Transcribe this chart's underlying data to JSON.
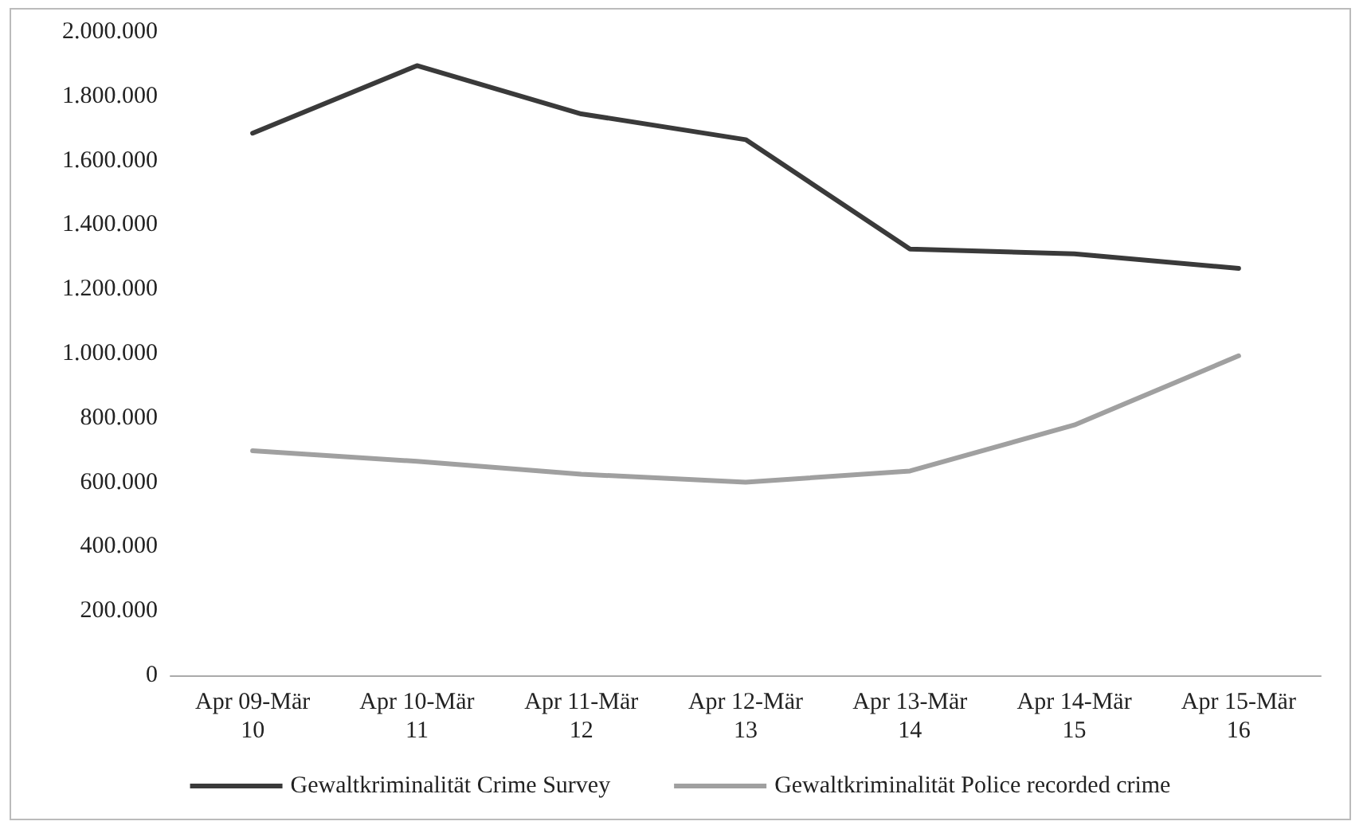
{
  "chart_data": {
    "type": "line",
    "categories": [
      "Apr 09-Mär\n10",
      "Apr 10-Mär\n11",
      "Apr 11-Mär\n12",
      "Apr 12-Mär\n13",
      "Apr 13-Mär\n14",
      "Apr 14-Mär\n15",
      "Apr 15-Mär\n16"
    ],
    "series": [
      {
        "name": "Gewaltkriminalität Crime Survey",
        "color": "#3a3a3a",
        "values": [
          1685000,
          1895000,
          1745000,
          1665000,
          1325000,
          1310000,
          1265000
        ]
      },
      {
        "name": "Gewaltkriminalität Police recorded crime",
        "color": "#a0a0a0",
        "values": [
          698000,
          665000,
          625000,
          600000,
          635000,
          778000,
          993000
        ]
      }
    ],
    "ylim": [
      0,
      2000000
    ],
    "yticks": [
      {
        "value": 0,
        "label": "0"
      },
      {
        "value": 200000,
        "label": "200.000"
      },
      {
        "value": 400000,
        "label": "400.000"
      },
      {
        "value": 600000,
        "label": "600.000"
      },
      {
        "value": 800000,
        "label": "800.000"
      },
      {
        "value": 1000000,
        "label": "1.000.000"
      },
      {
        "value": 1200000,
        "label": "1.200.000"
      },
      {
        "value": 1400000,
        "label": "1.400.000"
      },
      {
        "value": 1600000,
        "label": "1.600.000"
      },
      {
        "value": 1800000,
        "label": "1.800.000"
      },
      {
        "value": 2000000,
        "label": "2.000.000"
      }
    ],
    "legend": "bottom",
    "marker": "none",
    "line_style": "solid"
  }
}
